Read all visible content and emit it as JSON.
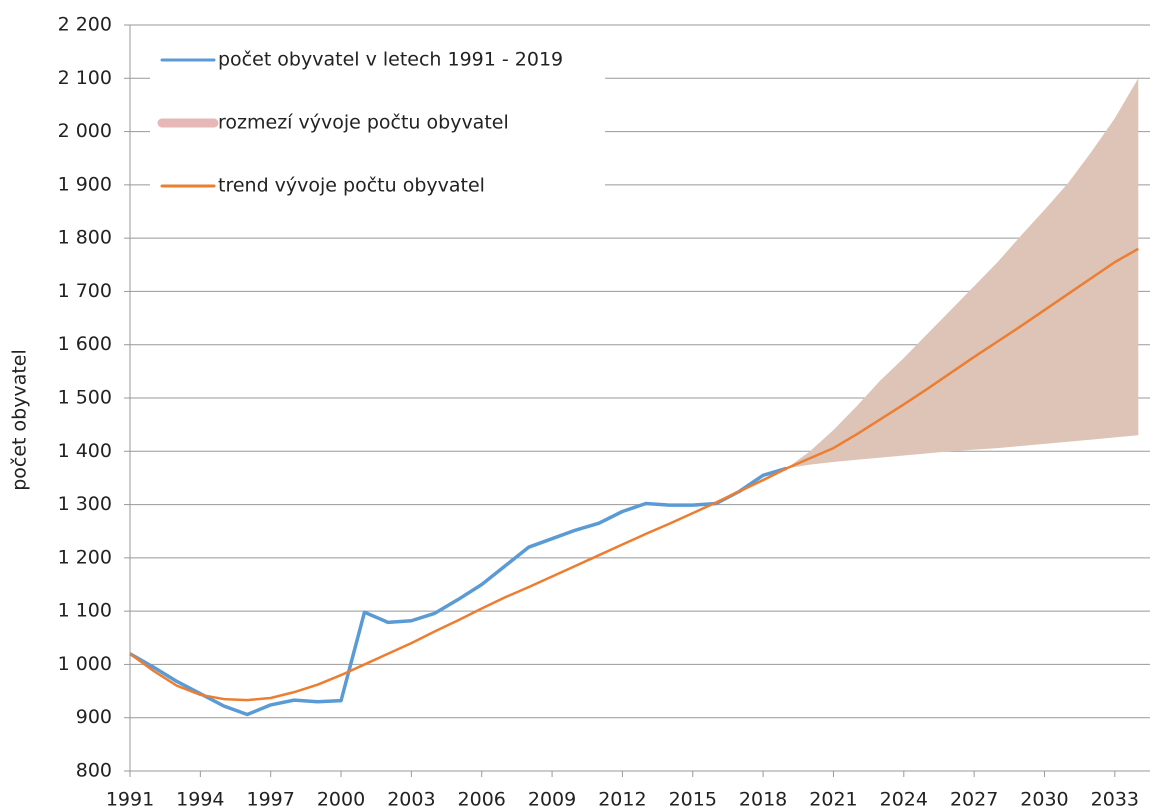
{
  "chart_data": {
    "type": "line",
    "y_label": "počet obyvatel",
    "xlim": [
      1991,
      2034.5
    ],
    "xticks": [
      1991,
      1994,
      1997,
      2000,
      2003,
      2006,
      2009,
      2012,
      2015,
      2018,
      2021,
      2024,
      2027,
      2030,
      2033
    ],
    "ylim": [
      800,
      2200
    ],
    "yticks": [
      800,
      900,
      {
        "value": 1000,
        "label": "1 000"
      },
      {
        "value": 1100,
        "label": "1 100"
      },
      {
        "value": 1200,
        "label": "1 200"
      },
      {
        "value": 1300,
        "label": "1 300"
      },
      {
        "value": 1400,
        "label": "1 400"
      },
      {
        "value": 1500,
        "label": "1 500"
      },
      {
        "value": 1600,
        "label": "1 600"
      },
      {
        "value": 1700,
        "label": "1 700"
      },
      {
        "value": 1800,
        "label": "1 800"
      },
      {
        "value": 1900,
        "label": "1 900"
      },
      {
        "value": 2000,
        "label": "2 000"
      },
      {
        "value": 2100,
        "label": "2 100"
      },
      {
        "value": 2200,
        "label": "2 200"
      }
    ],
    "grid": true,
    "legend": "top-left",
    "series": [
      {
        "name": "počet obyvatel v letech 1991 - 2019",
        "color": "#5b9bd5",
        "x": [
          1991,
          1992,
          1993,
          1994,
          1995,
          1996,
          1997,
          1998,
          1999,
          2000,
          2001,
          2002,
          2003,
          2004,
          2005,
          2006,
          2007,
          2008,
          2009,
          2010,
          2011,
          2012,
          2013,
          2014,
          2015,
          2016,
          2017,
          2018,
          2019
        ],
        "values": [
          1020,
          995,
          968,
          945,
          922,
          906,
          924,
          933,
          930,
          932,
          1098,
          1079,
          1082,
          1096,
          1122,
          1150,
          1185,
          1220,
          1236,
          1252,
          1265,
          1287,
          1302,
          1299,
          1299,
          1302,
          1325,
          1355,
          1368
        ]
      },
      {
        "name": "rozmezí vývoje počtu obyvatel",
        "color": "#ddc4b6",
        "legend_color": "#e6b8b7",
        "x": [
          2019,
          2020,
          2021,
          2022,
          2023,
          2024,
          2025,
          2026,
          2027,
          2028,
          2029,
          2030,
          2031,
          2032,
          2033,
          2034
        ],
        "upper": [
          1368,
          1400,
          1440,
          1485,
          1533,
          1575,
          1620,
          1665,
          1710,
          1755,
          1805,
          1853,
          1903,
          1962,
          2025,
          2100
        ],
        "lower": [
          1368,
          1375,
          1380,
          1384,
          1388,
          1392,
          1396,
          1400,
          1403,
          1406,
          1410,
          1414,
          1418,
          1422,
          1426,
          1430
        ]
      },
      {
        "name": "trend vývoje počtu obyvatel",
        "color": "#ed7d31",
        "x": [
          1991,
          1992,
          1993,
          1994,
          1995,
          1996,
          1997,
          1998,
          1999,
          2000,
          2001,
          2002,
          2003,
          2004,
          2005,
          2006,
          2007,
          2008,
          2009,
          2010,
          2011,
          2012,
          2013,
          2014,
          2015,
          2016,
          2017,
          2018,
          2019,
          2020,
          2021,
          2022,
          2023,
          2024,
          2025,
          2026,
          2027,
          2028,
          2029,
          2030,
          2031,
          2032,
          2033,
          2034
        ],
        "values": [
          1020,
          988,
          960,
          943,
          935,
          933,
          937,
          948,
          962,
          980,
          1000,
          1020,
          1040,
          1062,
          1083,
          1105,
          1126,
          1145,
          1165,
          1185,
          1205,
          1225,
          1245,
          1264,
          1284,
          1304,
          1325,
          1346,
          1368,
          1387,
          1406,
          1432,
          1460,
          1488,
          1517,
          1547,
          1577,
          1606,
          1635,
          1665,
          1695,
          1725,
          1755,
          1780
        ]
      }
    ]
  }
}
